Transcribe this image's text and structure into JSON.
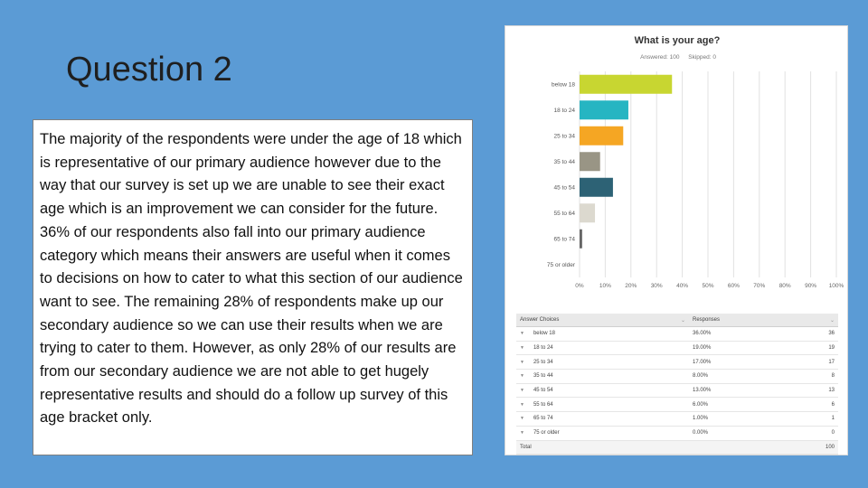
{
  "slide": {
    "title": "Question 2",
    "body": "The majority of the respondents were under the age of 18 which is representative of our primary audience however due to the way that our survey is set up we are unable to see their exact age which is an improvement we can consider for the future. 36% of our respondents also fall into our primary audience category which means their answers are useful when it comes to decisions on how to cater to what this section of our audience want to see. The remaining 28% of respondents make up our secondary audience so we can use their results when we are trying to cater to them. However, as only 28% of our results are from our secondary audience we are not able to get hugely representative results and should do a follow up survey of this age bracket only."
  },
  "chart_data": {
    "type": "bar",
    "orientation": "horizontal",
    "title": "What is your age?",
    "answered_label": "Answered: 100",
    "skipped_label": "Skipped: 0",
    "categories": [
      "below 18",
      "18 to 24",
      "25 to 34",
      "35 to 44",
      "45 to 54",
      "55 to 64",
      "65 to 74",
      "75 or older"
    ],
    "values": [
      36,
      19,
      17,
      8,
      13,
      6,
      1,
      0
    ],
    "colors": [
      "#c8d631",
      "#26b5c2",
      "#f5a623",
      "#999585",
      "#2d6275",
      "#dcd9cf",
      "#666666",
      "#888888"
    ],
    "xlim": [
      0,
      100
    ],
    "xticks": [
      "0%",
      "10%",
      "20%",
      "30%",
      "40%",
      "50%",
      "60%",
      "70%",
      "80%",
      "90%",
      "100%"
    ],
    "grid": true
  },
  "table": {
    "headers": [
      "Answer Choices",
      "Responses"
    ],
    "rows": [
      {
        "choice": "below 18",
        "pct": "36.00%",
        "n": "36"
      },
      {
        "choice": "18 to 24",
        "pct": "19.00%",
        "n": "19"
      },
      {
        "choice": "25 to 34",
        "pct": "17.00%",
        "n": "17"
      },
      {
        "choice": "35 to 44",
        "pct": "8.00%",
        "n": "8"
      },
      {
        "choice": "45 to 54",
        "pct": "13.00%",
        "n": "13"
      },
      {
        "choice": "55 to 64",
        "pct": "6.00%",
        "n": "6"
      },
      {
        "choice": "65 to 74",
        "pct": "1.00%",
        "n": "1"
      },
      {
        "choice": "75 or older",
        "pct": "0.00%",
        "n": "0"
      }
    ],
    "total_label": "Total",
    "total_value": "100"
  }
}
